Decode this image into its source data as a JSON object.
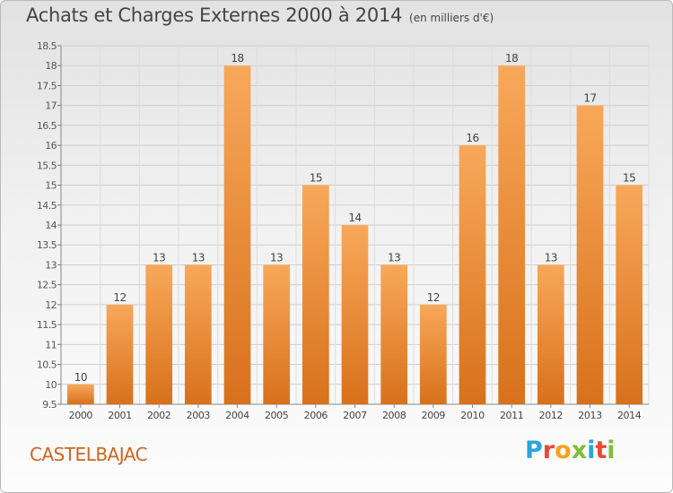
{
  "title": "Achats et Charges Externes 2000 à 2014",
  "unit": "(en milliers d'€)",
  "place": "CASTELBAJAC",
  "logo": {
    "text": "Proxiti",
    "colors": [
      "#2aa6da",
      "#e84a36",
      "#f4a21b",
      "#7cbf3a",
      "#2aa6da",
      "#e84a36",
      "#7cbf3a"
    ]
  },
  "colors": {
    "bar_top": "#f8a85a",
    "bar_bottom": "#d8711c",
    "place": "#d0651f"
  },
  "chart_data": {
    "type": "bar",
    "categories": [
      "2000",
      "2001",
      "2002",
      "2003",
      "2004",
      "2005",
      "2006",
      "2007",
      "2008",
      "2009",
      "2010",
      "2011",
      "2012",
      "2013",
      "2014"
    ],
    "values": [
      10,
      12,
      13,
      13,
      18,
      13,
      15,
      14,
      13,
      12,
      16,
      18,
      13,
      17,
      15
    ],
    "ylim": [
      9.5,
      18.5
    ],
    "yticks": [
      9.5,
      10,
      10.5,
      11,
      11.5,
      12,
      12.5,
      13,
      13.5,
      14,
      14.5,
      15,
      15.5,
      16,
      16.5,
      17,
      17.5,
      18,
      18.5
    ],
    "grid": true
  }
}
